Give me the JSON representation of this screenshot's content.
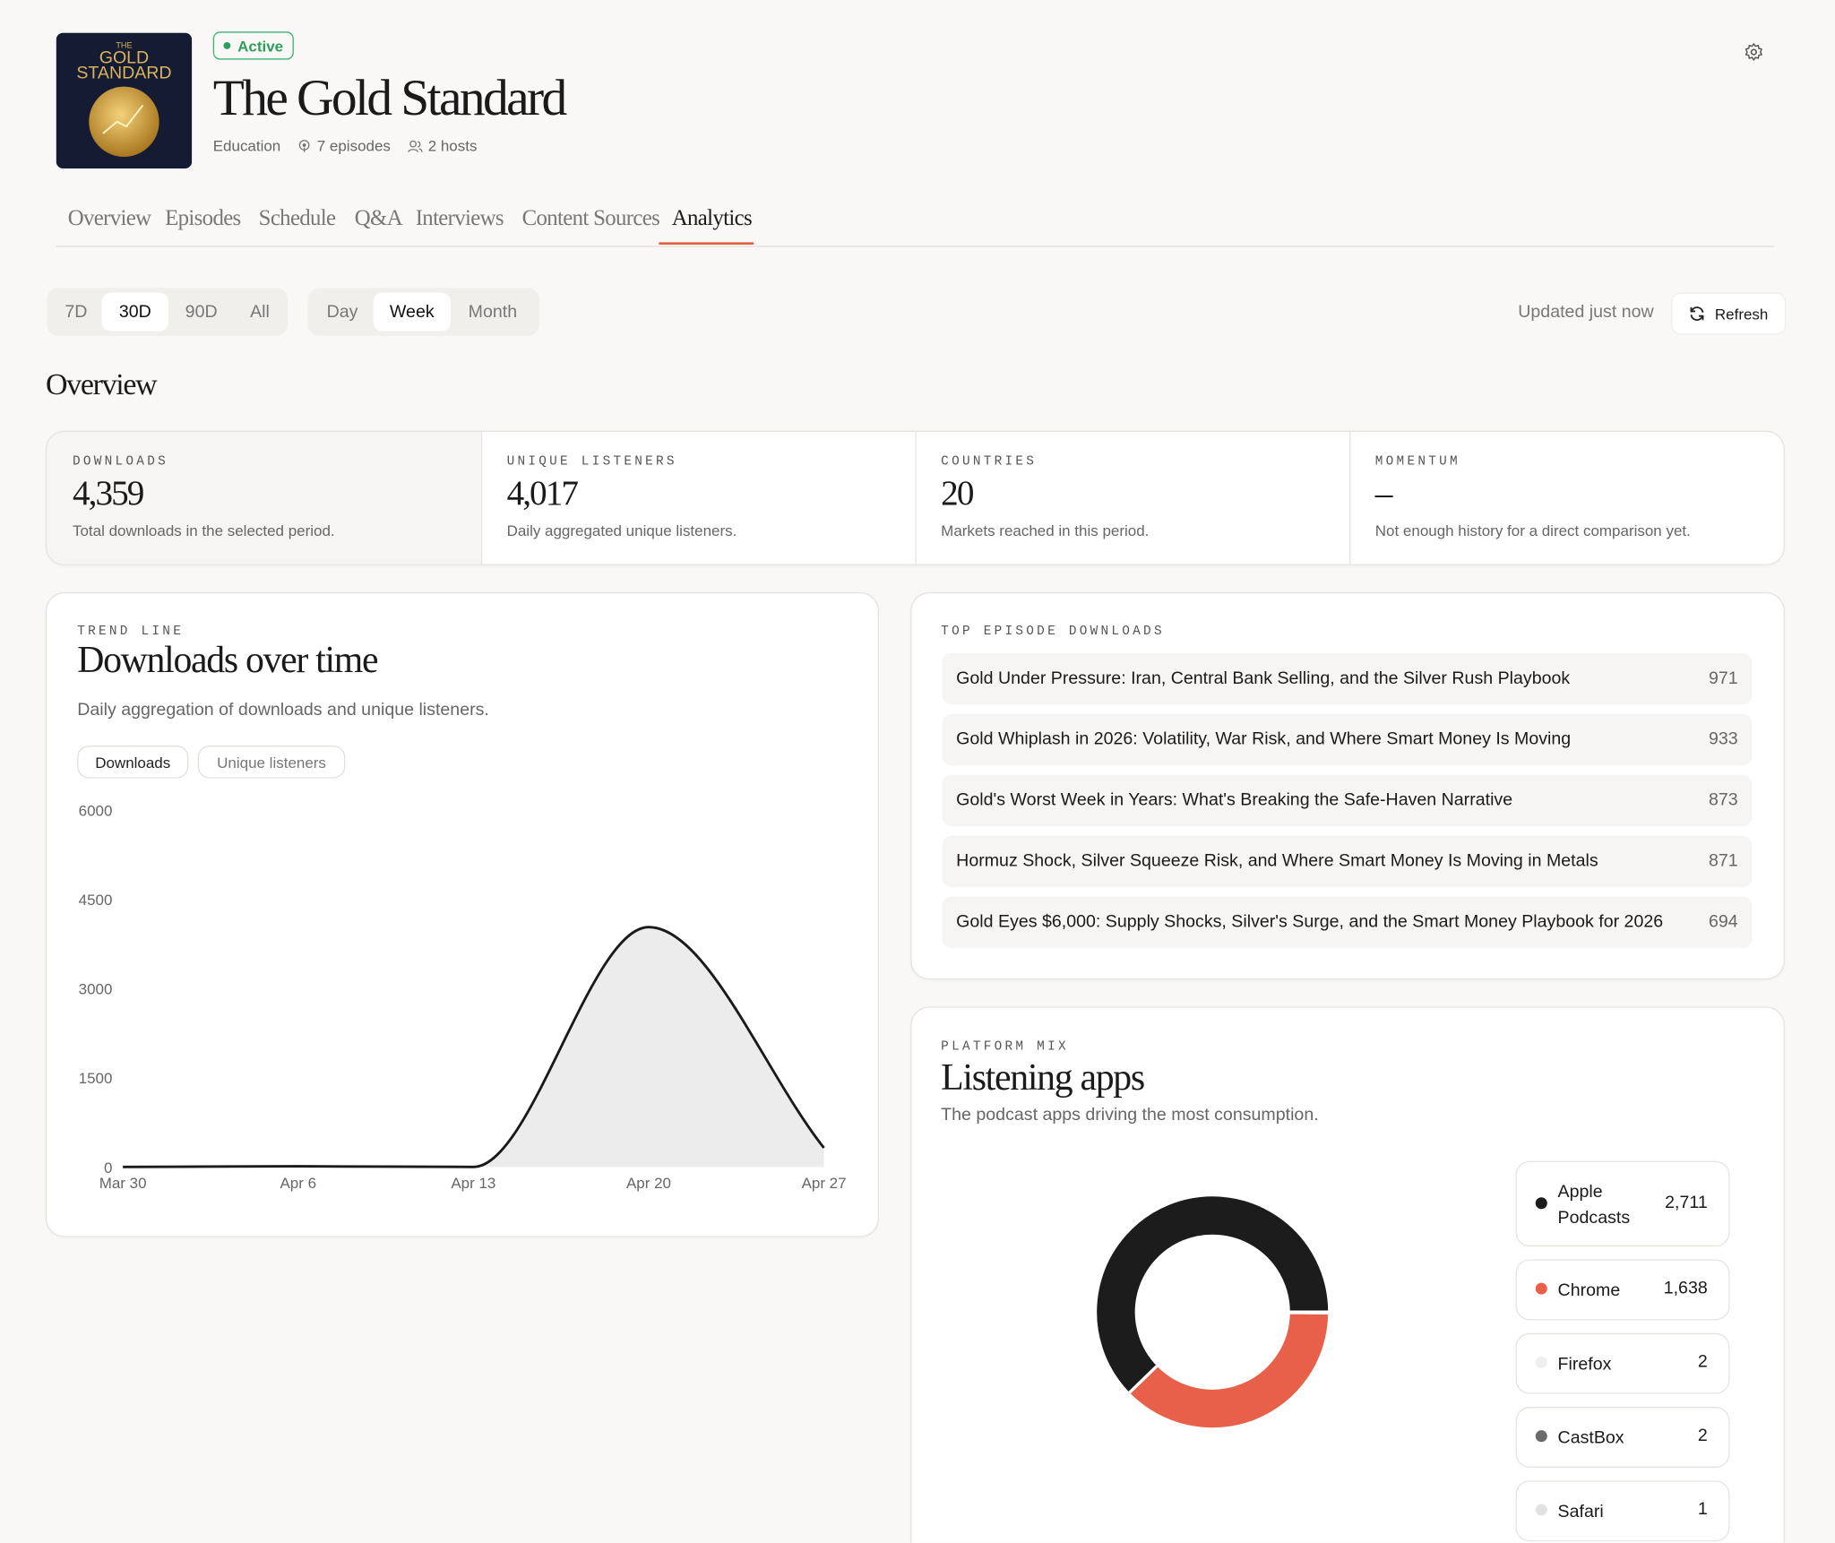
{
  "header": {
    "cover": [
      "THE",
      "GOLD",
      "STANDARD"
    ],
    "status": "Active",
    "title": "The Gold Standard",
    "category": "Education",
    "episodes": "7 episodes",
    "hosts": "2 hosts"
  },
  "tabs": {
    "items": [
      "Overview",
      "Episodes",
      "Schedule",
      "Q&A",
      "Interviews",
      "Content Sources",
      "Analytics"
    ],
    "active": 6
  },
  "range_filter": {
    "options": [
      "7D",
      "30D",
      "90D",
      "All"
    ],
    "active": 1
  },
  "interval_filter": {
    "options": [
      "Day",
      "Week",
      "Month"
    ],
    "active": 1
  },
  "status_text": "Updated just now",
  "refresh": "Refresh",
  "overview": {
    "title": "Overview",
    "stats": [
      {
        "label": "DOWNLOADS",
        "value": "4,359",
        "description": "Total downloads in the selected period."
      },
      {
        "label": "UNIQUE LISTENERS",
        "value": "4,017",
        "description": "Daily aggregated unique listeners."
      },
      {
        "label": "COUNTRIES",
        "value": "20",
        "description": "Markets reached in this period."
      },
      {
        "label": "MOMENTUM",
        "value": "–",
        "description": "Not enough history for a direct comparison yet."
      }
    ]
  },
  "chart_data": [
    {
      "type": "area",
      "kicker": "TREND LINE",
      "title": "Downloads over time",
      "subtitle": "Daily aggregation of downloads and unique listeners.",
      "toggles": [
        "Downloads",
        "Unique listeners"
      ],
      "categories": [
        "Mar 30",
        "Apr 6",
        "Apr 13",
        "Apr 20",
        "Apr 27"
      ],
      "values": [
        0,
        10,
        0,
        4030,
        320
      ],
      "color": "#1a1a1a",
      "fill": "#ececec",
      "ylim": [
        0,
        6000
      ],
      "yticks": [
        0,
        1500,
        3000,
        4500,
        6000
      ]
    },
    {
      "type": "donut",
      "kicker": "PLATFORM MIX",
      "title": "Listening apps",
      "subtitle": "The podcast apps driving the most consumption.",
      "categories": [
        "Apple Podcasts",
        "Chrome",
        "Firefox",
        "CastBox",
        "Safari"
      ],
      "values": [
        2711,
        1638,
        2,
        2,
        1
      ],
      "value_labels": [
        "2,711",
        "1,638",
        "2",
        "2",
        "1"
      ],
      "colors": [
        "#1c1c1c",
        "#e8604a",
        "#efefef",
        "#6b6b6b",
        "#e2e2e2"
      ]
    }
  ],
  "top_episodes": {
    "title": "TOP EPISODE DOWNLOADS",
    "rows": [
      {
        "title": "Gold Under Pressure: Iran, Central Bank Selling, and the Silver Rush Playbook",
        "downloads": 971
      },
      {
        "title": "Gold Whiplash in 2026: Volatility, War Risk, and Where Smart Money Is Moving",
        "downloads": 933
      },
      {
        "title": "Gold's Worst Week in Years: What's Breaking the Safe-Haven Narrative",
        "downloads": 873
      },
      {
        "title": "Hormuz Shock, Silver Squeeze Risk, and Where Smart Money Is Moving in Metals",
        "downloads": 871
      },
      {
        "title": "Gold Eyes $6,000: Supply Shocks, Silver's Surge, and the Smart Money Playbook for 2026",
        "downloads": 694
      }
    ]
  }
}
